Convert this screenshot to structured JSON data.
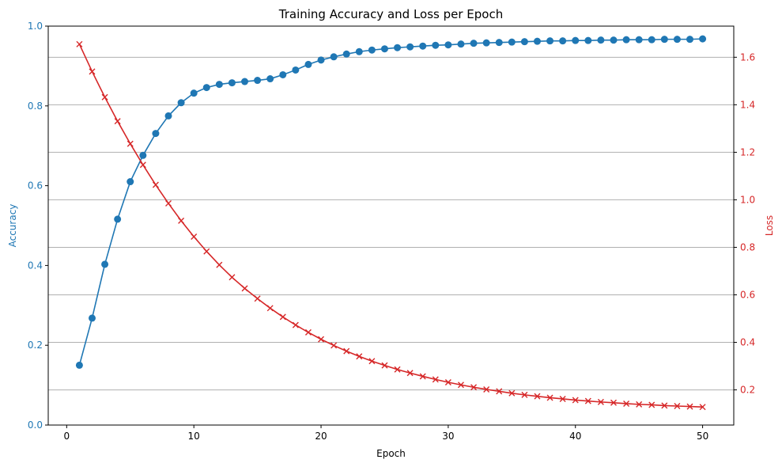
{
  "chart_data": {
    "type": "line",
    "title": "Training Accuracy and Loss per Epoch",
    "xlabel": "Epoch",
    "xlim": [
      -1.45,
      52.45
    ],
    "xticks": [
      0,
      10,
      20,
      30,
      40,
      50
    ],
    "grid": "horizontal lines at right-axis ticks",
    "left_axis": {
      "label": "Accuracy",
      "color": "#1f77b4",
      "ylim": [
        0.0,
        1.0
      ],
      "ticks": [
        0.0,
        0.2,
        0.4,
        0.6,
        0.8,
        1.0
      ],
      "tick_labels": [
        "0.0",
        "0.2",
        "0.4",
        "0.6",
        "0.8",
        "1.0"
      ]
    },
    "right_axis": {
      "label": "Loss",
      "color": "#d62728",
      "ylim": [
        0.052,
        1.731
      ],
      "ticks": [
        0.2,
        0.4,
        0.6,
        0.8,
        1.0,
        1.2,
        1.4,
        1.6
      ],
      "tick_labels": [
        "0.2",
        "0.4",
        "0.6",
        "0.8",
        "1.0",
        "1.2",
        "1.4",
        "1.6"
      ]
    },
    "x": [
      1,
      2,
      3,
      4,
      5,
      6,
      7,
      8,
      9,
      10,
      11,
      12,
      13,
      14,
      15,
      16,
      17,
      18,
      19,
      20,
      21,
      22,
      23,
      24,
      25,
      26,
      27,
      28,
      29,
      30,
      31,
      32,
      33,
      34,
      35,
      36,
      37,
      38,
      39,
      40,
      41,
      42,
      43,
      44,
      45,
      46,
      47,
      48,
      49,
      50
    ],
    "series": [
      {
        "axis": "left",
        "marker": "circle",
        "color": "#1f77b4",
        "values": [
          0.15,
          0.268,
          0.403,
          0.516,
          0.61,
          0.676,
          0.731,
          0.775,
          0.808,
          0.832,
          0.846,
          0.854,
          0.858,
          0.861,
          0.864,
          0.868,
          0.878,
          0.89,
          0.904,
          0.915,
          0.923,
          0.93,
          0.936,
          0.94,
          0.943,
          0.946,
          0.948,
          0.95,
          0.952,
          0.953,
          0.955,
          0.957,
          0.958,
          0.959,
          0.96,
          0.961,
          0.962,
          0.963,
          0.963,
          0.964,
          0.964,
          0.965,
          0.965,
          0.966,
          0.966,
          0.966,
          0.967,
          0.967,
          0.967,
          0.968
        ]
      },
      {
        "axis": "right",
        "marker": "x",
        "color": "#d62728",
        "values": [
          1.655,
          1.54,
          1.432,
          1.331,
          1.236,
          1.147,
          1.063,
          0.985,
          0.912,
          0.845,
          0.783,
          0.726,
          0.674,
          0.627,
          0.584,
          0.544,
          0.507,
          0.473,
          0.442,
          0.413,
          0.387,
          0.363,
          0.341,
          0.321,
          0.303,
          0.286,
          0.271,
          0.257,
          0.244,
          0.232,
          0.221,
          0.211,
          0.202,
          0.194,
          0.186,
          0.179,
          0.173,
          0.167,
          0.162,
          0.157,
          0.153,
          0.149,
          0.146,
          0.142,
          0.139,
          0.137,
          0.134,
          0.132,
          0.13,
          0.128
        ]
      }
    ]
  }
}
